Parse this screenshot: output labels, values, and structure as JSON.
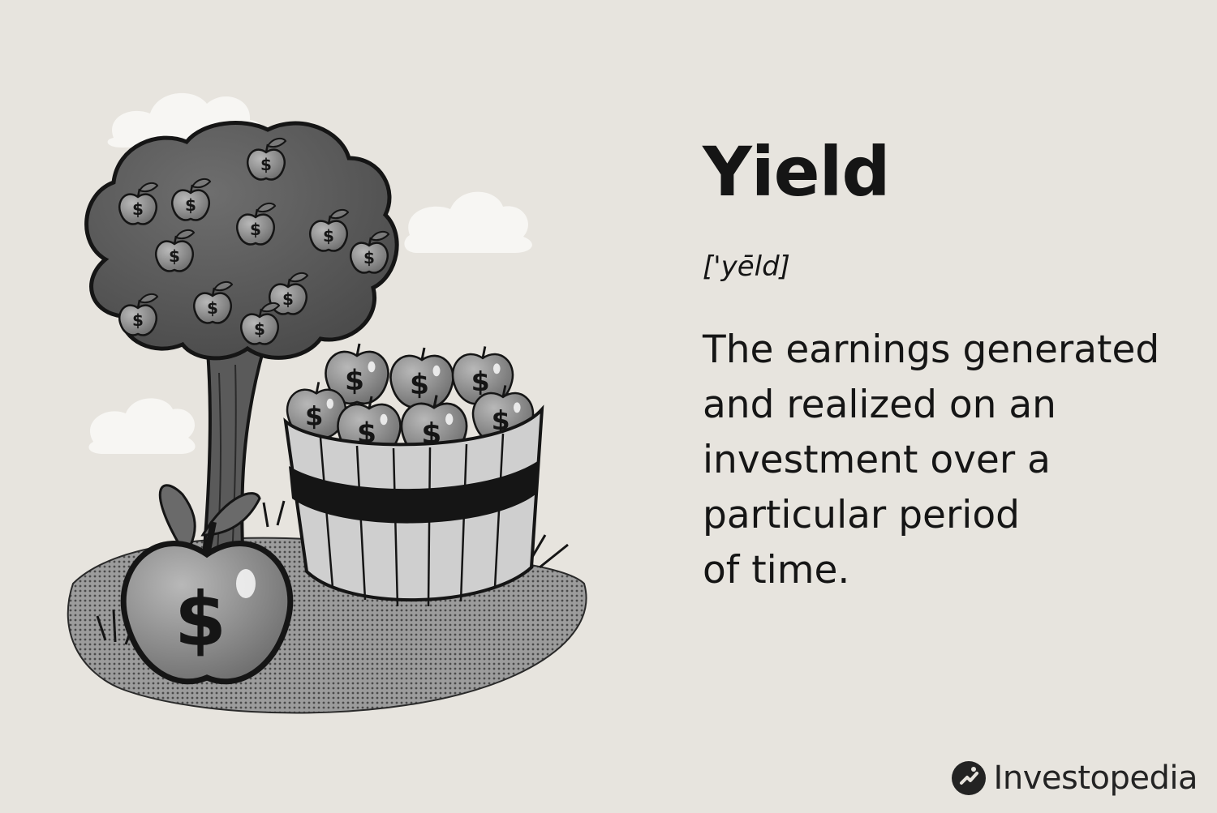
{
  "definition": {
    "term": "Yield",
    "pronunciation": "['yēld]",
    "lines": [
      "The earnings generated",
      "and realized on an",
      "investment over a",
      "particular period",
      "of time."
    ]
  },
  "brand": {
    "name": "Investopedia",
    "icon": "investopedia-logo-icon"
  },
  "illustration": {
    "subject": "money-tree-and-apple-bushel",
    "symbol": "$",
    "colors": {
      "background": "#e7e4de",
      "foliage": "#5a5a5a",
      "apple": "#8c8c8c",
      "outline": "#151515"
    }
  }
}
